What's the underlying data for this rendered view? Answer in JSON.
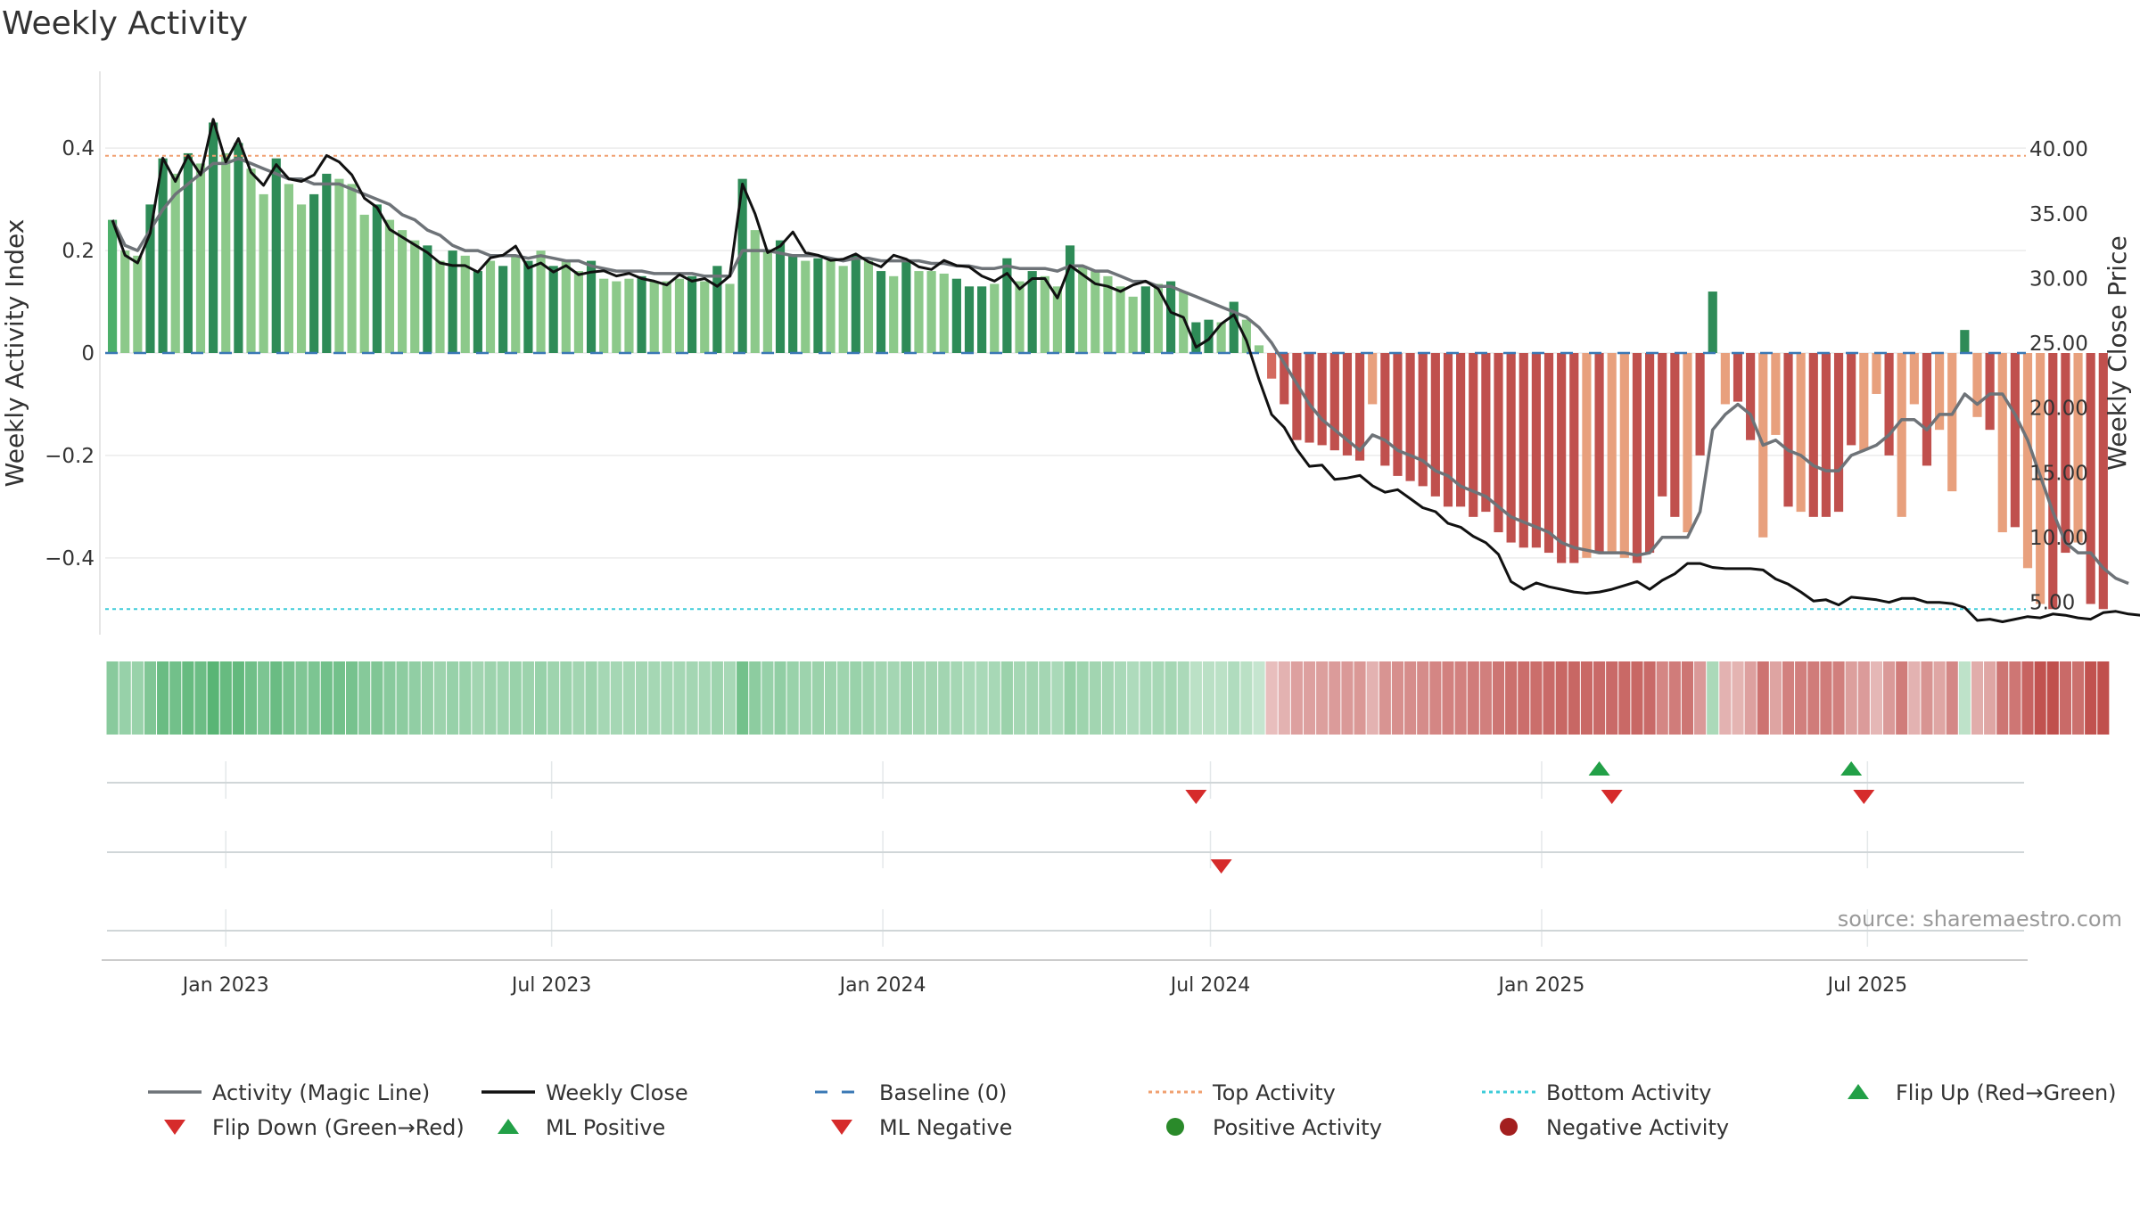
{
  "title": "Weekly Activity",
  "source": "source: sharemaestro.com",
  "colors": {
    "pos_dark": "#2e8b57",
    "pos_mid": "#4caf6a",
    "pos_light": "#8cc98a",
    "neg_dark": "#c0504d",
    "neg_mid": "#d46a5f",
    "neg_light": "#e8a07d",
    "magic_line": "#6e7378",
    "close_line": "#111111",
    "baseline": "#3a78b5",
    "top_line": "#f0a070",
    "bottom_line": "#3ccbd8",
    "flip_up": "#22a047",
    "flip_down": "#d62b2b",
    "pos_dot": "#2a8a2a",
    "neg_dot": "#a31f1f"
  },
  "chart_data": {
    "type": "bar",
    "xlabel": "",
    "ylabel": "Weekly Activity Index",
    "y2label": "Weekly Close Price",
    "x_tick_labels": [
      "Jan 2023",
      "Jul 2023",
      "Jan 2024",
      "Jul 2024",
      "Jan 2025",
      "Jul 2025"
    ],
    "x_tick_dates": [
      "2023-01-01",
      "2023-07-01",
      "2024-01-01",
      "2024-07-01",
      "2025-01-01",
      "2025-07-01"
    ],
    "x_range": [
      "2022-10-26",
      "2025-09-27"
    ],
    "ylim": [
      -0.55,
      0.55
    ],
    "y_ticks": [
      0.4,
      0.2,
      0,
      -0.2,
      -0.4
    ],
    "y_tick_labels": [
      "0.4",
      "0.2",
      "0",
      "−0.2",
      "−0.4"
    ],
    "y2lim": [
      2.5,
      46.0
    ],
    "y2_ticks": [
      40,
      35,
      30,
      25,
      20,
      15,
      10,
      5
    ],
    "y2_tick_labels": [
      "40.00",
      "35.00",
      "30.00",
      "25.00",
      "20.00",
      "15.00",
      "10.00",
      "5.00"
    ],
    "baseline": 0,
    "top_activity": 0.385,
    "bottom_activity": -0.5,
    "start_date": "2022-10-30",
    "week_days": 7,
    "activity": [
      0.26,
      0.2,
      0.19,
      0.29,
      0.38,
      0.35,
      0.39,
      0.37,
      0.45,
      0.39,
      0.41,
      0.36,
      0.31,
      0.38,
      0.33,
      0.29,
      0.31,
      0.35,
      0.34,
      0.33,
      0.27,
      0.29,
      0.26,
      0.24,
      0.22,
      0.21,
      0.18,
      0.2,
      0.19,
      0.16,
      0.18,
      0.17,
      0.19,
      0.18,
      0.2,
      0.17,
      0.18,
      0.16,
      0.18,
      0.145,
      0.14,
      0.145,
      0.15,
      0.14,
      0.14,
      0.145,
      0.15,
      0.14,
      0.17,
      0.135,
      0.34,
      0.24,
      0.2,
      0.22,
      0.19,
      0.18,
      0.185,
      0.18,
      0.17,
      0.19,
      0.18,
      0.16,
      0.15,
      0.18,
      0.16,
      0.16,
      0.155,
      0.145,
      0.13,
      0.13,
      0.135,
      0.185,
      0.14,
      0.16,
      0.15,
      0.13,
      0.21,
      0.17,
      0.16,
      0.15,
      0.13,
      0.11,
      0.13,
      0.135,
      0.14,
      0.12,
      0.06,
      0.065,
      0.06,
      0.1,
      0.065,
      0.015,
      -0.05,
      -0.1,
      -0.17,
      -0.175,
      -0.18,
      -0.19,
      -0.2,
      -0.21,
      -0.1,
      -0.22,
      -0.24,
      -0.25,
      -0.26,
      -0.28,
      -0.3,
      -0.3,
      -0.32,
      -0.31,
      -0.35,
      -0.37,
      -0.38,
      -0.38,
      -0.39,
      -0.41,
      -0.41,
      -0.4,
      -0.39,
      -0.39,
      -0.4,
      -0.41,
      -0.39,
      -0.28,
      -0.32,
      -0.35,
      -0.2,
      0.12,
      -0.1,
      -0.095,
      -0.17,
      -0.36,
      -0.16,
      -0.3,
      -0.31,
      -0.32,
      -0.32,
      -0.31,
      -0.18,
      -0.19,
      -0.08,
      -0.2,
      -0.32,
      -0.1,
      -0.22,
      -0.15,
      -0.27,
      0.045,
      -0.125,
      -0.15,
      -0.35,
      -0.34,
      -0.42,
      -0.49,
      -0.5,
      -0.39,
      -0.37,
      -0.49,
      -0.5
    ],
    "bar_shade": [
      "m",
      "l",
      "l",
      "d",
      "d",
      "l",
      "d",
      "l",
      "d",
      "l",
      "d",
      "l",
      "l",
      "d",
      "l",
      "l",
      "d",
      "d",
      "l",
      "l",
      "l",
      "d",
      "l",
      "l",
      "l",
      "d",
      "l",
      "d",
      "l",
      "d",
      "l",
      "d",
      "l",
      "d",
      "l",
      "d",
      "l",
      "l",
      "d",
      "l",
      "l",
      "l",
      "d",
      "l",
      "l",
      "l",
      "d",
      "l",
      "d",
      "l",
      "d",
      "l",
      "l",
      "d",
      "d",
      "l",
      "d",
      "l",
      "l",
      "d",
      "l",
      "d",
      "l",
      "d",
      "l",
      "l",
      "l",
      "d",
      "d",
      "d",
      "l",
      "d",
      "l",
      "d",
      "l",
      "l",
      "d",
      "l",
      "l",
      "l",
      "l",
      "l",
      "d",
      "l",
      "d",
      "l",
      "d",
      "d",
      "l",
      "d",
      "l",
      "l",
      "m",
      "d",
      "d",
      "d",
      "d",
      "d",
      "d",
      "d",
      "l",
      "d",
      "d",
      "d",
      "d",
      "d",
      "d",
      "d",
      "d",
      "d",
      "d",
      "d",
      "d",
      "d",
      "d",
      "d",
      "d",
      "l",
      "d",
      "l",
      "l",
      "d",
      "d",
      "d",
      "d",
      "l",
      "d",
      "d",
      "l",
      "d",
      "d",
      "l",
      "l",
      "d",
      "l",
      "d",
      "d",
      "d",
      "d",
      "l",
      "l",
      "d",
      "l",
      "l",
      "d",
      "l",
      "l",
      "d",
      "l",
      "d",
      "l",
      "d",
      "l",
      "l",
      "d",
      "d",
      "l",
      "d",
      "d",
      "l",
      "l",
      "d",
      "d"
    ],
    "magic_line": [
      0.26,
      0.21,
      0.2,
      0.24,
      0.28,
      0.31,
      0.33,
      0.35,
      0.37,
      0.37,
      0.38,
      0.37,
      0.36,
      0.35,
      0.34,
      0.34,
      0.33,
      0.33,
      0.33,
      0.32,
      0.31,
      0.3,
      0.29,
      0.27,
      0.26,
      0.24,
      0.23,
      0.21,
      0.2,
      0.2,
      0.19,
      0.19,
      0.19,
      0.185,
      0.19,
      0.185,
      0.18,
      0.18,
      0.17,
      0.165,
      0.16,
      0.16,
      0.16,
      0.155,
      0.155,
      0.155,
      0.155,
      0.15,
      0.15,
      0.15,
      0.2,
      0.2,
      0.2,
      0.195,
      0.19,
      0.19,
      0.19,
      0.185,
      0.18,
      0.185,
      0.185,
      0.18,
      0.18,
      0.18,
      0.18,
      0.175,
      0.175,
      0.17,
      0.17,
      0.165,
      0.165,
      0.17,
      0.165,
      0.165,
      0.165,
      0.16,
      0.17,
      0.17,
      0.16,
      0.16,
      0.15,
      0.14,
      0.14,
      0.13,
      0.13,
      0.12,
      0.11,
      0.1,
      0.09,
      0.08,
      0.07,
      0.05,
      0.02,
      -0.02,
      -0.06,
      -0.1,
      -0.13,
      -0.15,
      -0.17,
      -0.19,
      -0.16,
      -0.17,
      -0.19,
      -0.2,
      -0.21,
      -0.23,
      -0.24,
      -0.26,
      -0.27,
      -0.28,
      -0.3,
      -0.32,
      -0.33,
      -0.34,
      -0.35,
      -0.37,
      -0.38,
      -0.385,
      -0.39,
      -0.39,
      -0.39,
      -0.395,
      -0.39,
      -0.36,
      -0.36,
      -0.36,
      -0.31,
      -0.15,
      -0.12,
      -0.1,
      -0.12,
      -0.18,
      -0.17,
      -0.19,
      -0.2,
      -0.22,
      -0.23,
      -0.23,
      -0.2,
      -0.19,
      -0.18,
      -0.16,
      -0.13,
      -0.13,
      -0.15,
      -0.12,
      -0.12,
      -0.08,
      -0.1,
      -0.08,
      -0.08,
      -0.12,
      -0.17,
      -0.24,
      -0.31,
      -0.37,
      -0.39,
      -0.39,
      -0.42,
      -0.44,
      -0.45
    ],
    "weekly_close": [
      34.5,
      31.8,
      31.2,
      33.5,
      39.3,
      37.5,
      39.5,
      38.0,
      42.3,
      39.0,
      40.8,
      38.2,
      37.2,
      38.8,
      37.7,
      37.5,
      38.0,
      39.5,
      39.0,
      38.0,
      36.2,
      35.5,
      33.8,
      33.2,
      32.6,
      32.0,
      31.2,
      31.0,
      31.0,
      30.5,
      31.6,
      31.8,
      32.5,
      30.8,
      31.2,
      30.5,
      31.0,
      30.3,
      30.5,
      30.6,
      30.2,
      30.4,
      30.0,
      29.8,
      29.5,
      30.3,
      29.8,
      30.0,
      29.4,
      30.2,
      37.3,
      35.0,
      32.0,
      32.5,
      33.6,
      32.0,
      31.8,
      31.4,
      31.5,
      31.9,
      31.3,
      30.9,
      31.8,
      31.5,
      30.9,
      30.7,
      31.4,
      31.0,
      30.9,
      30.2,
      29.8,
      30.4,
      29.2,
      30.0,
      30.0,
      28.5,
      31.0,
      30.3,
      29.6,
      29.4,
      29.0,
      29.5,
      29.8,
      29.2,
      27.4,
      27.0,
      24.7,
      25.3,
      26.5,
      27.2,
      25.2,
      22.2,
      19.5,
      18.5,
      16.8,
      15.5,
      15.6,
      14.5,
      14.6,
      14.8,
      14.0,
      13.5,
      13.7,
      13.0,
      12.3,
      12.0,
      11.1,
      10.8,
      10.1,
      9.6,
      8.7,
      6.6,
      6.0,
      6.5,
      6.2,
      6.0,
      5.8,
      5.7,
      5.8,
      6.0,
      6.3,
      6.6,
      6.0,
      6.7,
      7.2,
      8.0,
      8.0,
      7.7,
      7.6,
      7.6,
      7.6,
      7.5,
      6.8,
      6.4,
      5.8,
      5.1,
      5.2,
      4.8,
      5.4,
      5.3,
      5.2,
      5.0,
      5.3,
      5.3,
      5.0,
      5.0,
      4.9,
      4.6,
      3.6,
      3.7,
      3.5,
      3.7,
      3.9,
      3.8,
      4.1,
      4.0,
      3.8,
      3.7,
      4.2,
      4.3,
      4.1,
      4.0
    ],
    "heat_strip": "one colored tile per week: green shades for positive activity, red shades for negative",
    "flip_up_weeks": [
      118,
      138
    ],
    "flip_down_weeks": [
      86,
      119,
      139
    ],
    "ml_negative_weeks": [
      88
    ],
    "legend": [
      {
        "label": "Activity (Magic Line)",
        "symbol": "line",
        "color": "#6e7378"
      },
      {
        "label": "Weekly Close",
        "symbol": "line",
        "color": "#111111"
      },
      {
        "label": "Baseline (0)",
        "symbol": "dash",
        "color": "#3a78b5"
      },
      {
        "label": "Top Activity",
        "symbol": "dot-line",
        "color": "#f0a070"
      },
      {
        "label": "Bottom Activity",
        "symbol": "dot-line",
        "color": "#3ccbd8"
      },
      {
        "label": "Flip Up (Red→Green)",
        "symbol": "tri-up",
        "color": "#22a047"
      },
      {
        "label": "Flip Down (Green→Red)",
        "symbol": "tri-down",
        "color": "#d62b2b"
      },
      {
        "label": "ML Positive",
        "symbol": "tri-up",
        "color": "#22a047"
      },
      {
        "label": "ML Negative",
        "symbol": "tri-down",
        "color": "#d62b2b"
      },
      {
        "label": "Positive Activity",
        "symbol": "circle",
        "color": "#2a8a2a"
      },
      {
        "label": "Negative Activity",
        "symbol": "circle",
        "color": "#a31f1f"
      }
    ],
    "legend_placement": "bottom"
  }
}
